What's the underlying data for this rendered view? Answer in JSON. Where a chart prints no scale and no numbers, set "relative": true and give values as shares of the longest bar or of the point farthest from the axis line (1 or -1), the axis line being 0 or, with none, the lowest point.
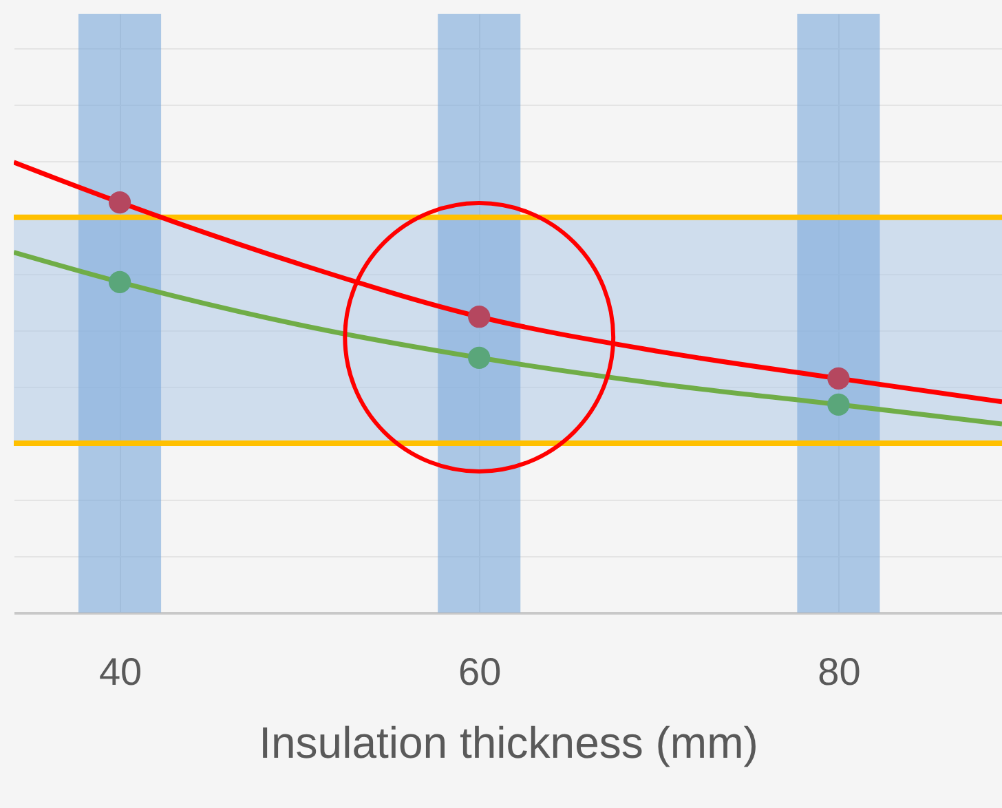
{
  "chart_data": {
    "type": "line",
    "relative": true,
    "xlabel": "Insulation thickness (mm)",
    "xlim": [
      34.1,
      89.1
    ],
    "xticks": [
      40,
      60,
      80
    ],
    "grid": true,
    "series": [
      {
        "color": "#ff0000",
        "x": [
          34.1,
          40,
          50,
          60,
          70,
          80,
          89.1
        ],
        "values": [
          1.0,
          0.911,
          0.774,
          0.657,
          0.58,
          0.52,
          0.468
        ]
      },
      {
        "color": "#70ad47",
        "x": [
          34.1,
          40,
          50,
          60,
          70,
          80,
          89.1
        ],
        "values": [
          0.8,
          0.734,
          0.639,
          0.566,
          0.508,
          0.462,
          0.419
        ]
      },
      {
        "type": "scatter",
        "color": "#b5475f",
        "x": [
          40,
          60,
          80
        ],
        "values": [
          0.911,
          0.657,
          0.52
        ]
      },
      {
        "type": "scatter",
        "color": "#5aa67a",
        "x": [
          40,
          60,
          80
        ],
        "values": [
          0.734,
          0.566,
          0.462
        ]
      }
    ],
    "ref_lines": [
      {
        "axis": "y",
        "value": 0.878,
        "color": "#ffc000"
      },
      {
        "axis": "y",
        "value": 0.376,
        "color": "#ffc000"
      }
    ],
    "bands": [
      {
        "axis": "y",
        "from": 0.376,
        "to": 0.878,
        "color": "#a9c6e6"
      },
      {
        "axis": "x",
        "from": 37.7,
        "to": 42.3,
        "color": "#7aa9da"
      },
      {
        "axis": "x",
        "from": 57.7,
        "to": 62.3,
        "color": "#7aa9da"
      },
      {
        "axis": "x",
        "from": 77.7,
        "to": 82.3,
        "color": "#7aa9da"
      }
    ]
  }
}
